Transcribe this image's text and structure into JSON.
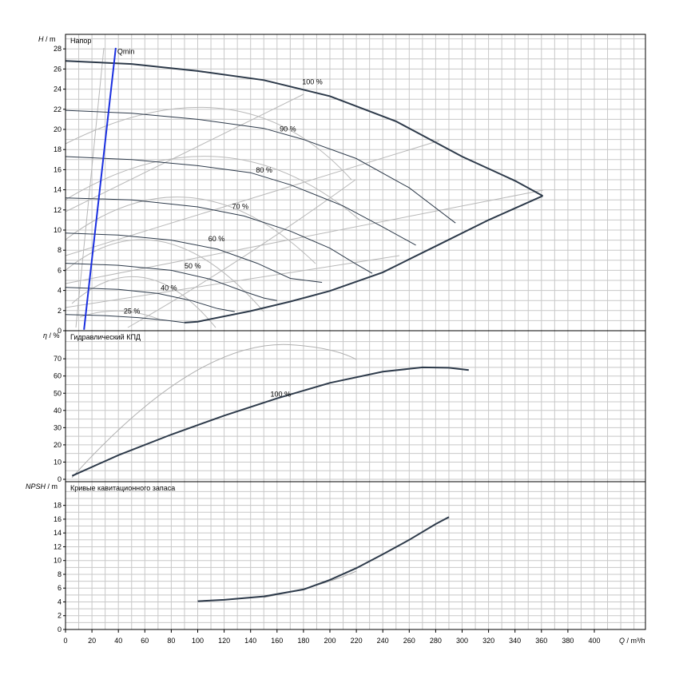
{
  "chart_data": {
    "type": "line",
    "x_axis": {
      "label_var": "Q",
      "label_unit": "/ m³/h",
      "range": [
        0,
        440
      ],
      "ticks": [
        "0",
        "20",
        "40",
        "60",
        "80",
        "100",
        "120",
        "140",
        "160",
        "180",
        "200",
        "220",
        "240",
        "260",
        "280",
        "300",
        "320",
        "340",
        "360",
        "380",
        "400"
      ],
      "grid_step": 10
    },
    "panels": [
      {
        "id": "head",
        "title": "Напор",
        "ylabel_var": "H",
        "ylabel_unit": "/ m",
        "ylim": [
          0,
          29.5
        ],
        "yticks": [
          "0",
          "2",
          "4",
          "6",
          "8",
          "10",
          "12",
          "14",
          "16",
          "18",
          "20",
          "22",
          "24",
          "26",
          "28"
        ],
        "ytick_values": [
          0,
          2,
          4,
          6,
          8,
          10,
          12,
          14,
          16,
          18,
          20,
          22,
          24,
          26,
          28
        ],
        "grid_step": 1,
        "qmin": {
          "label": "Qmin",
          "color": "#1a2fe0",
          "from": [
            14,
            0.1
          ],
          "to": [
            38,
            28.1
          ]
        },
        "series": [
          {
            "label": "100 %",
            "label_at": [
              179,
              24.5
            ],
            "points": [
              [
                0,
                26.8
              ],
              [
                50,
                26.5
              ],
              [
                100,
                25.8
              ],
              [
                150,
                24.9
              ],
              [
                200,
                23.3
              ],
              [
                250,
                20.8
              ],
              [
                300,
                17.3
              ],
              [
                340,
                14.9
              ],
              [
                361,
                13.4
              ]
            ]
          },
          {
            "label": "90 %",
            "label_at": [
              162,
              19.8
            ],
            "points": [
              [
                0,
                21.9
              ],
              [
                50,
                21.6
              ],
              [
                100,
                21.0
              ],
              [
                150,
                20.1
              ],
              [
                180,
                19.0
              ],
              [
                220,
                17.1
              ],
              [
                260,
                14.2
              ],
              [
                295,
                10.7
              ]
            ]
          },
          {
            "label": "80 %",
            "label_at": [
              144,
              15.7
            ],
            "points": [
              [
                0,
                17.3
              ],
              [
                50,
                17.0
              ],
              [
                100,
                16.4
              ],
              [
                140,
                15.7
              ],
              [
                170,
                14.5
              ],
              [
                210,
                12.4
              ],
              [
                240,
                10.3
              ],
              [
                265,
                8.5
              ]
            ]
          },
          {
            "label": "70 %",
            "label_at": [
              126,
              12.1
            ],
            "points": [
              [
                0,
                13.2
              ],
              [
                50,
                13.0
              ],
              [
                100,
                12.3
              ],
              [
                135,
                11.4
              ],
              [
                170,
                9.9
              ],
              [
                200,
                8.2
              ],
              [
                220,
                6.6
              ],
              [
                232,
                5.7
              ]
            ]
          },
          {
            "label": "60 %",
            "label_at": [
              108,
              8.9
            ],
            "points": [
              [
                0,
                9.7
              ],
              [
                40,
                9.5
              ],
              [
                80,
                9.0
              ],
              [
                115,
                8.1
              ],
              [
                145,
                6.7
              ],
              [
                170,
                5.2
              ],
              [
                194,
                4.8
              ]
            ]
          },
          {
            "label": "50 %",
            "label_at": [
              90,
              6.2
            ],
            "points": [
              [
                0,
                6.7
              ],
              [
                40,
                6.5
              ],
              [
                80,
                6.0
              ],
              [
                110,
                5.1
              ],
              [
                135,
                3.9
              ],
              [
                150,
                3.25
              ],
              [
                160,
                3.0
              ]
            ]
          },
          {
            "label": "40 %",
            "label_at": [
              72,
              4.0
            ],
            "points": [
              [
                0,
                4.3
              ],
              [
                40,
                4.1
              ],
              [
                70,
                3.7
              ],
              [
                95,
                3.0
              ],
              [
                115,
                2.2
              ],
              [
                128,
                1.9
              ]
            ]
          },
          {
            "label": "25 %",
            "label_at": [
              44,
              1.7
            ],
            "points": [
              [
                0,
                1.6
              ],
              [
                30,
                1.5
              ],
              [
                55,
                1.3
              ],
              [
                75,
                1.05
              ],
              [
                90,
                0.8
              ]
            ]
          },
          {
            "label": "",
            "points": [
              [
                90,
                0.8
              ],
              [
                100,
                0.9
              ],
              [
                140,
                1.95
              ],
              [
                170,
                2.9
              ],
              [
                200,
                3.95
              ],
              [
                240,
                5.8
              ],
              [
                280,
                8.4
              ],
              [
                320,
                11.0
              ],
              [
                361,
                13.4
              ]
            ]
          }
        ]
      },
      {
        "id": "efficiency",
        "title": "Гидравлический КПД",
        "ylabel_var": "η",
        "ylabel_unit": "/ %",
        "ylim": [
          0,
          80
        ],
        "yticks": [
          "0",
          "10",
          "20",
          "30",
          "40",
          "50",
          "60",
          "70"
        ],
        "ytick_values": [
          0,
          10,
          20,
          30,
          40,
          50,
          60,
          70
        ],
        "grid_step": 5,
        "series": [
          {
            "label": "100 %",
            "label_at": [
              155,
              48
            ],
            "points": [
              [
                5,
                2
              ],
              [
                40,
                14
              ],
              [
                80,
                26
              ],
              [
                120,
                37
              ],
              [
                160,
                47
              ],
              [
                200,
                56
              ],
              [
                240,
                62.5
              ],
              [
                270,
                65
              ],
              [
                290,
                64.8
              ],
              [
                305,
                63.5
              ]
            ]
          }
        ]
      },
      {
        "id": "npsh",
        "title": "Кривые кавитационного запаса",
        "ylabel_var": "NPSH",
        "ylabel_unit": "/ m",
        "ylim": [
          0,
          20
        ],
        "yticks": [
          "0",
          "2",
          "4",
          "6",
          "8",
          "10",
          "12",
          "14",
          "16",
          "18"
        ],
        "ytick_values": [
          0,
          2,
          4,
          6,
          8,
          10,
          12,
          14,
          16,
          18
        ],
        "grid_step": 1,
        "series": [
          {
            "label": "",
            "points": [
              [
                100,
                4.1
              ],
              [
                120,
                4.3
              ],
              [
                150,
                4.8
              ],
              [
                180,
                5.8
              ],
              [
                200,
                7.2
              ],
              [
                220,
                8.9
              ],
              [
                240,
                10.9
              ],
              [
                260,
                13.0
              ],
              [
                280,
                15.3
              ],
              [
                290,
                16.3
              ]
            ]
          }
        ]
      }
    ]
  }
}
